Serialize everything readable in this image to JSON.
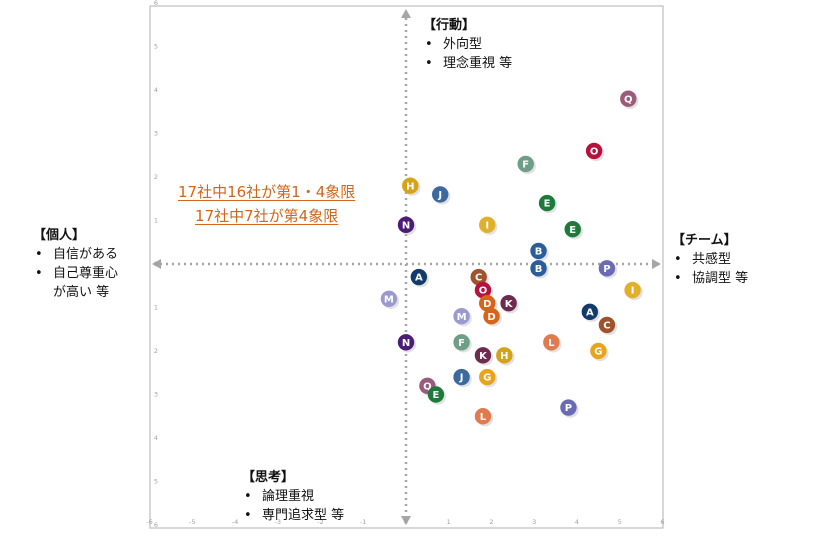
{
  "chart_data": {
    "type": "scatter",
    "xlim": [
      -6,
      6
    ],
    "ylim": [
      -6,
      6
    ],
    "x_ticks": [
      "-6",
      "-5",
      "-4",
      "-3",
      "-2",
      "-1",
      "0",
      "1",
      "2",
      "3",
      "4",
      "5",
      "6"
    ],
    "y_ticks": [
      "6",
      "5",
      "4",
      "3",
      "2",
      "1",
      "0",
      "1",
      "2",
      "3",
      "4",
      "5",
      "6"
    ],
    "grid": false,
    "points": [
      {
        "label": "Q",
        "x": 5.2,
        "y": 3.8,
        "color": "#9b5b7a"
      },
      {
        "label": "O",
        "x": 4.4,
        "y": 2.6,
        "color": "#b5123e"
      },
      {
        "label": "F",
        "x": 2.8,
        "y": 2.3,
        "color": "#6f9e86"
      },
      {
        "label": "E",
        "x": 3.3,
        "y": 1.4,
        "color": "#1e7a3c"
      },
      {
        "label": "E",
        "x": 3.9,
        "y": 0.8,
        "color": "#1e7a3c"
      },
      {
        "label": "H",
        "x": 0.1,
        "y": 1.8,
        "color": "#d6a218"
      },
      {
        "label": "J",
        "x": 0.8,
        "y": 1.6,
        "color": "#3d6a9e"
      },
      {
        "label": "I",
        "x": 1.9,
        "y": 0.9,
        "color": "#e0b02c"
      },
      {
        "label": "N",
        "x": 0.0,
        "y": 0.9,
        "color": "#4b1d77"
      },
      {
        "label": "B",
        "x": 3.1,
        "y": 0.3,
        "color": "#2a5d9a"
      },
      {
        "label": "B",
        "x": 3.1,
        "y": -0.1,
        "color": "#2a5d9a"
      },
      {
        "label": "P",
        "x": 4.7,
        "y": -0.1,
        "color": "#6a6ab5"
      },
      {
        "label": "I",
        "x": 5.3,
        "y": -0.6,
        "color": "#e0b02c"
      },
      {
        "label": "A",
        "x": 0.3,
        "y": -0.3,
        "color": "#123a6b"
      },
      {
        "label": "C",
        "x": 1.7,
        "y": -0.3,
        "color": "#a0522d"
      },
      {
        "label": "O",
        "x": 1.8,
        "y": -0.6,
        "color": "#b5123e"
      },
      {
        "label": "D",
        "x": 1.9,
        "y": -0.9,
        "color": "#d6651a"
      },
      {
        "label": "K",
        "x": 2.4,
        "y": -0.9,
        "color": "#6e2a4f"
      },
      {
        "label": "D",
        "x": 2.0,
        "y": -1.2,
        "color": "#d6651a"
      },
      {
        "label": "M",
        "x": -0.4,
        "y": -0.8,
        "color": "#9a9ad0"
      },
      {
        "label": "M",
        "x": 1.3,
        "y": -1.2,
        "color": "#9a9ad0"
      },
      {
        "label": "A",
        "x": 4.3,
        "y": -1.1,
        "color": "#123a6b"
      },
      {
        "label": "C",
        "x": 4.7,
        "y": -1.4,
        "color": "#a0522d"
      },
      {
        "label": "N",
        "x": 0.0,
        "y": -1.8,
        "color": "#4b1d77"
      },
      {
        "label": "F",
        "x": 1.3,
        "y": -1.8,
        "color": "#6f9e86"
      },
      {
        "label": "L",
        "x": 3.4,
        "y": -1.8,
        "color": "#e07a4f"
      },
      {
        "label": "G",
        "x": 4.5,
        "y": -2.0,
        "color": "#e8a51c"
      },
      {
        "label": "K",
        "x": 1.8,
        "y": -2.1,
        "color": "#6e2a4f"
      },
      {
        "label": "H",
        "x": 2.3,
        "y": -2.1,
        "color": "#d6a218"
      },
      {
        "label": "J",
        "x": 1.3,
        "y": -2.6,
        "color": "#3d6a9e"
      },
      {
        "label": "G",
        "x": 1.9,
        "y": -2.6,
        "color": "#e8a51c"
      },
      {
        "label": "Q",
        "x": 0.5,
        "y": -2.8,
        "color": "#9b5b7a"
      },
      {
        "label": "E",
        "x": 0.7,
        "y": -3.0,
        "color": "#1e7a3c"
      },
      {
        "label": "P",
        "x": 3.8,
        "y": -3.3,
        "color": "#6a6ab5"
      },
      {
        "label": "L",
        "x": 1.8,
        "y": -3.5,
        "color": "#e07a4f"
      }
    ]
  },
  "quadrants": {
    "top": {
      "title": "【行動】",
      "items": [
        "外向型",
        "理念重視 等"
      ]
    },
    "right": {
      "title": "【チーム】",
      "items": [
        "共感型",
        "協調型 等"
      ]
    },
    "left": {
      "title": "【個人】",
      "items": [
        "自信がある",
        "自己尊重心\nが高い 等"
      ]
    },
    "bottom": {
      "title": "【思考】",
      "items": [
        "論理重視",
        "専門追求型 等"
      ]
    }
  },
  "callout": {
    "line1": "17社中16社が第1・4象限",
    "line2": "17社中7社が第4象限"
  }
}
